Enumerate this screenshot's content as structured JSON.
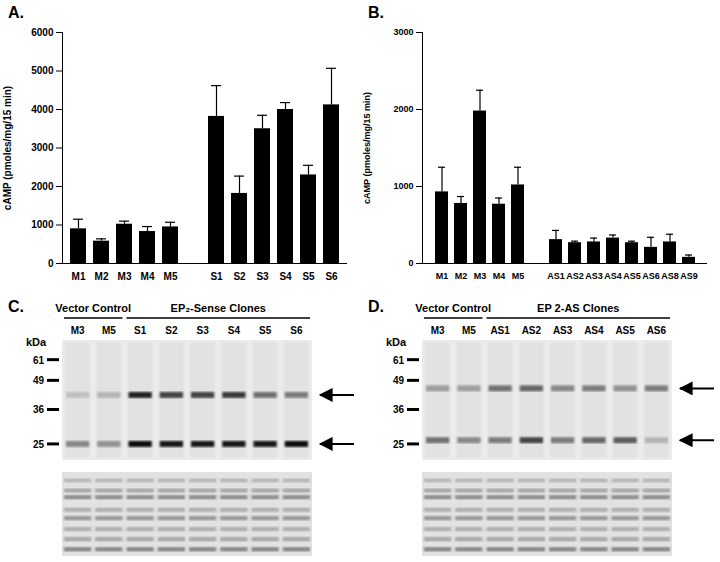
{
  "chart_data": [
    {
      "type": "bar",
      "title": "A.",
      "y_label": "cAMP (pmoles/mg/15 min)",
      "color": "#000000",
      "categories": [
        "M1",
        "M2",
        "M3",
        "M4",
        "M5",
        null,
        "S1",
        "S2",
        "S3",
        "S4",
        "S5",
        "S6"
      ],
      "values": [
        900,
        580,
        1020,
        830,
        950,
        null,
        3820,
        1820,
        3500,
        4000,
        2300,
        4120
      ],
      "error": [
        250,
        60,
        80,
        130,
        120,
        null,
        800,
        450,
        350,
        180,
        250,
        950
      ],
      "ylim": [
        0,
        6000
      ],
      "yticks": [
        0,
        1000,
        2000,
        3000,
        4000,
        5000,
        6000
      ]
    },
    {
      "type": "bar",
      "title": "B.",
      "y_label": "cAMP (pmoles/mg/15 min)",
      "color": "#000000",
      "categories": [
        "M1",
        "M2",
        "M3",
        "M4",
        "M5",
        null,
        "AS1",
        "AS2",
        "AS3",
        "AS4",
        "AS5",
        "AS6",
        "AS8",
        "AS9"
      ],
      "values": [
        930,
        780,
        1980,
        770,
        1020,
        null,
        310,
        270,
        280,
        330,
        270,
        210,
        280,
        80
      ],
      "error": [
        320,
        90,
        270,
        80,
        230,
        null,
        120,
        20,
        50,
        40,
        20,
        130,
        100,
        30
      ],
      "ylim": [
        0,
        3000
      ],
      "yticks": [
        0,
        1000,
        2000,
        3000
      ]
    }
  ],
  "blots": [
    {
      "title": "C.",
      "unit": "kDa",
      "markers": [
        61,
        49,
        36,
        25
      ],
      "groups": [
        {
          "label": "Vector Control",
          "lanes": [
            "M3",
            "M5"
          ]
        },
        {
          "label": "EP₂-Sense Clones",
          "lanes": [
            "S1",
            "S2",
            "S3",
            "S4",
            "S5",
            "S6"
          ]
        }
      ],
      "bands": [
        {
          "kda": 42,
          "intensities": [
            0.15,
            0.2,
            0.85,
            0.7,
            0.7,
            0.75,
            0.5,
            0.45
          ]
        },
        {
          "kda": 25,
          "intensities": [
            0.4,
            0.35,
            0.95,
            0.9,
            0.9,
            0.9,
            0.9,
            0.95
          ]
        }
      ]
    },
    {
      "title": "D.",
      "unit": "kDa",
      "markers": [
        61,
        49,
        36,
        25
      ],
      "groups": [
        {
          "label": "Vector Control",
          "lanes": [
            "M3",
            "M5"
          ]
        },
        {
          "label": "EP 2-AS Clones",
          "lanes": [
            "AS1",
            "AS2",
            "AS3",
            "AS4",
            "AS5",
            "AS6"
          ]
        }
      ],
      "bands": [
        {
          "kda": 45,
          "intensities": [
            0.3,
            0.3,
            0.5,
            0.55,
            0.4,
            0.45,
            0.35,
            0.45
          ]
        },
        {
          "kda": 26,
          "intensities": [
            0.5,
            0.4,
            0.45,
            0.7,
            0.45,
            0.55,
            0.6,
            0.2
          ]
        }
      ]
    }
  ]
}
